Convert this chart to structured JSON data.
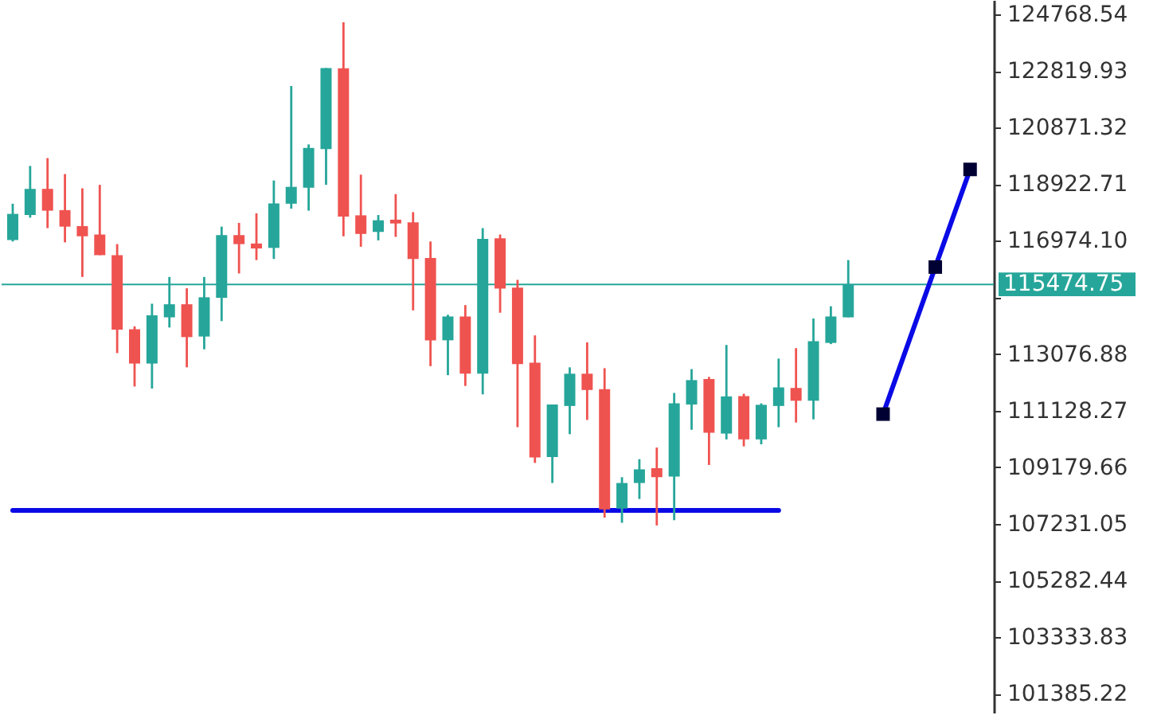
{
  "chart_data": {
    "type": "candlestick",
    "categories": [
      null,
      null,
      null,
      null,
      null,
      null,
      null,
      null,
      null,
      null,
      null,
      null,
      null,
      null,
      null,
      null,
      null,
      null,
      null,
      null,
      null,
      null,
      null,
      null,
      null,
      null,
      null,
      null,
      null,
      null,
      null,
      null,
      null,
      null,
      null,
      null,
      null,
      null,
      null,
      null,
      null,
      null,
      null,
      null,
      null,
      null,
      null,
      null,
      null,
      null,
      null,
      null,
      null,
      null,
      null,
      null
    ],
    "ohlc": [
      [
        117000,
        118250,
        116950,
        117900
      ],
      [
        117860,
        119550,
        117770,
        118760
      ],
      [
        118760,
        119820,
        117410,
        118010
      ],
      [
        118030,
        119270,
        116920,
        117460
      ],
      [
        117480,
        118780,
        115730,
        117130
      ],
      [
        117190,
        118900,
        116480,
        116480
      ],
      [
        116480,
        116860,
        113110,
        113920
      ],
      [
        113930,
        114030,
        111960,
        112750
      ],
      [
        112750,
        114810,
        111890,
        114410
      ],
      [
        114340,
        115730,
        113990,
        114790
      ],
      [
        114790,
        115340,
        112620,
        113660
      ],
      [
        113680,
        115730,
        113240,
        115030
      ],
      [
        115010,
        117460,
        114210,
        117170
      ],
      [
        117170,
        117590,
        115850,
        116860
      ],
      [
        116880,
        117920,
        116310,
        116710
      ],
      [
        116730,
        119050,
        116350,
        118260
      ],
      [
        118250,
        122300,
        118080,
        118830
      ],
      [
        118800,
        120290,
        118010,
        120170
      ],
      [
        120130,
        122920,
        118900,
        122920
      ],
      [
        122910,
        124490,
        117130,
        117810
      ],
      [
        117850,
        119250,
        116770,
        117210
      ],
      [
        117280,
        117860,
        116990,
        117680
      ],
      [
        117700,
        118580,
        117110,
        117570
      ],
      [
        117610,
        117960,
        114580,
        116350
      ],
      [
        116380,
        116950,
        112660,
        113550
      ],
      [
        113550,
        114430,
        112350,
        114370
      ],
      [
        114370,
        114760,
        111980,
        112400
      ],
      [
        112400,
        117410,
        111690,
        117040
      ],
      [
        117060,
        117190,
        114500,
        115330
      ],
      [
        115360,
        115630,
        110560,
        112730
      ],
      [
        112780,
        113720,
        109330,
        109520
      ],
      [
        109530,
        111340,
        108640,
        111340
      ],
      [
        111290,
        112620,
        110320,
        112400
      ],
      [
        112400,
        113480,
        110810,
        111840
      ],
      [
        111870,
        112590,
        107450,
        107730
      ],
      [
        107760,
        108840,
        107270,
        108640
      ],
      [
        108640,
        109460,
        108090,
        109110
      ],
      [
        109150,
        109860,
        107180,
        108840
      ],
      [
        108860,
        111740,
        107360,
        111380
      ],
      [
        111340,
        112560,
        110470,
        112180
      ],
      [
        112220,
        112290,
        109260,
        110370
      ],
      [
        110340,
        113390,
        110140,
        111620
      ],
      [
        111630,
        111710,
        109900,
        110140
      ],
      [
        110140,
        111380,
        109970,
        111330
      ],
      [
        111290,
        112920,
        110560,
        111930
      ],
      [
        111910,
        113280,
        110720,
        111470
      ],
      [
        111470,
        114300,
        110830,
        113520
      ],
      [
        113460,
        114720,
        113420,
        114370
      ],
      [
        114340,
        116310,
        114340,
        115470
      ],
      null,
      null,
      null,
      null,
      null,
      null,
      null
    ],
    "colors": [
      "#26a69a",
      "#26a69a",
      "#ef5350",
      "#ef5350",
      "#ef5350",
      "#ef5350",
      "#ef5350",
      "#ef5350",
      "#26a69a",
      "#26a69a",
      "#ef5350",
      "#26a69a",
      "#26a69a",
      "#ef5350",
      "#ef5350",
      "#26a69a",
      "#26a69a",
      "#26a69a",
      "#26a69a",
      "#ef5350",
      "#ef5350",
      "#26a69a",
      "#ef5350",
      "#ef5350",
      "#ef5350",
      "#26a69a",
      "#ef5350",
      "#26a69a",
      "#ef5350",
      "#ef5350",
      "#ef5350",
      "#26a69a",
      "#26a69a",
      "#ef5350",
      "#ef5350",
      "#26a69a",
      "#26a69a",
      "#ef5350",
      "#26a69a",
      "#26a69a",
      "#ef5350",
      "#26a69a",
      "#ef5350",
      "#26a69a",
      "#26a69a",
      "#ef5350",
      "#26a69a",
      "#26a69a",
      "#26a69a",
      null,
      null,
      null,
      null,
      null,
      null,
      null
    ],
    "series": [
      {
        "type": "line",
        "color": "#0a0ae6",
        "values": [
          107700,
          107700,
          107700,
          107700,
          107700,
          107700,
          107700,
          107700,
          107700,
          107700,
          107700,
          107700,
          107700,
          107700,
          107700,
          107700,
          107700,
          107700,
          107700,
          107700,
          107700,
          107700,
          107700,
          107700,
          107700,
          107700,
          107700,
          107700,
          107700,
          107700,
          107700,
          107700,
          107700,
          107700,
          107700,
          107700,
          107700,
          107700,
          107700,
          107700,
          107700,
          107700,
          107700,
          107700,
          107700,
          null,
          null,
          null,
          null,
          null,
          null,
          null,
          null,
          null,
          null,
          null
        ]
      },
      {
        "type": "line",
        "color": "#0a0ae6",
        "values": [
          null,
          null,
          null,
          null,
          null,
          null,
          null,
          null,
          null,
          null,
          null,
          null,
          null,
          null,
          null,
          null,
          null,
          null,
          null,
          null,
          null,
          null,
          null,
          null,
          null,
          null,
          null,
          null,
          null,
          null,
          null,
          null,
          null,
          null,
          null,
          null,
          null,
          null,
          null,
          null,
          null,
          null,
          null,
          null,
          null,
          null,
          null,
          null,
          null,
          null,
          111010,
          112700,
          114380,
          116070,
          117750,
          119430
        ]
      },
      {
        "type": "scatter",
        "color": "#000033",
        "marker": "square",
        "values": [
          null,
          null,
          null,
          null,
          null,
          null,
          null,
          null,
          null,
          null,
          null,
          null,
          null,
          null,
          null,
          null,
          null,
          null,
          null,
          null,
          null,
          null,
          null,
          null,
          null,
          null,
          null,
          null,
          null,
          null,
          null,
          null,
          null,
          null,
          null,
          null,
          null,
          null,
          null,
          null,
          null,
          null,
          null,
          null,
          null,
          null,
          null,
          null,
          null,
          null,
          111010,
          null,
          null,
          116070,
          null,
          119430
        ]
      }
    ],
    "ref_lines": [
      {
        "axis": "y",
        "value": 115474.75,
        "label": "115474.75",
        "color": "#26a69a"
      }
    ],
    "ylim": [
      100710,
      125260
    ],
    "yticks": [
      124768.54,
      122819.93,
      120871.32,
      118922.71,
      {
        "value": 116974.1,
        "label": "116974.10"
      },
      {
        "value": 115025.49,
        "label": null
      },
      113076.88,
      111128.27,
      109179.66,
      107231.05,
      105282.44,
      103333.83,
      101385.22
    ],
    "tick_labels": "y"
  }
}
